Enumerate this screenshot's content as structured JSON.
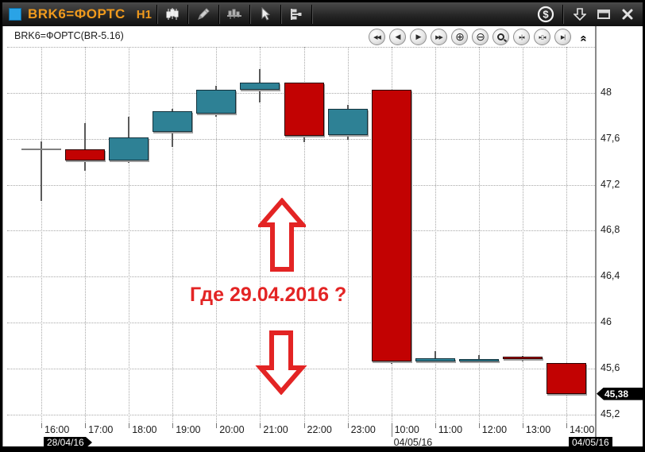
{
  "window": {
    "title": "BRK6=ФОРТС",
    "timeframe": "H1"
  },
  "colors": {
    "accent_orange": "#f09a1d",
    "accent_blue": "#2aa3e6",
    "candle_up": "#2e8195",
    "candle_down": "#c20202",
    "doji": "#7f7f7f",
    "annotation_red": "#e32424",
    "tag_bg": "#000000",
    "grid": "#a8a8a8"
  },
  "toolbar": {
    "left_icons": [
      "candlestick-chart-tool",
      "draw-pencil-tool",
      "volume-chart-tool",
      "cursor-tool",
      "levels-tool"
    ],
    "right_icons": [
      "dollar-currency",
      "download-arrow",
      "restore-window",
      "close-window"
    ]
  },
  "chart": {
    "instrument_label": "BRK6=ФОРТС(BR-5.16)",
    "nav_buttons": [
      {
        "name": "scroll-fast-left",
        "glyph": "◀◀"
      },
      {
        "name": "scroll-left",
        "glyph": "◀"
      },
      {
        "name": "scroll-right",
        "glyph": "▶"
      },
      {
        "name": "scroll-fast-right",
        "glyph": "▶▶"
      },
      {
        "name": "zoom-in",
        "glyph": "⊕"
      },
      {
        "name": "zoom-out",
        "glyph": "⊖"
      },
      {
        "name": "zoom-area",
        "glyph": "magnifier"
      },
      {
        "name": "compress-bars",
        "glyph": "▸|◂"
      },
      {
        "name": "expand-bars",
        "glyph": "▸▯◂"
      },
      {
        "name": "go-to-end",
        "glyph": "▶|"
      }
    ],
    "collapse_chevron": "collapse-toolbar"
  },
  "annotation": {
    "text": "Где 29.04.2016 ?"
  },
  "chart_data": {
    "type": "candlestick",
    "instrument": "BRK6=ФОРТС(BR-5.16)",
    "timeframe": "H1",
    "ylim": [
      45.11,
      48.58
    ],
    "grid": true,
    "y_grid": [
      48.4,
      48.0,
      47.6,
      47.2,
      46.8,
      46.4,
      46.0,
      45.6,
      45.2
    ],
    "y_ticks": [
      {
        "value": 48.0,
        "label": "48"
      },
      {
        "value": 47.6,
        "label": "47,6"
      },
      {
        "value": 47.2,
        "label": "47,2"
      },
      {
        "value": 46.8,
        "label": "46,8"
      },
      {
        "value": 46.4,
        "label": "46,4"
      },
      {
        "value": 46.0,
        "label": "46"
      },
      {
        "value": 45.6,
        "label": "45,6"
      },
      {
        "value": 45.2,
        "label": "45,2"
      }
    ],
    "last_price": 45.38,
    "last_price_label": "45,38",
    "candles": [
      {
        "time": "16:00",
        "open": 47.51,
        "high": 47.58,
        "low": 47.06,
        "close": 47.51,
        "doji": true
      },
      {
        "time": "17:00",
        "open": 47.51,
        "high": 47.74,
        "low": 47.32,
        "close": 47.41
      },
      {
        "time": "18:00",
        "open": 47.41,
        "high": 47.79,
        "low": 47.39,
        "close": 47.61
      },
      {
        "time": "19:00",
        "open": 47.66,
        "high": 47.86,
        "low": 47.53,
        "close": 47.84
      },
      {
        "time": "20:00",
        "open": 47.82,
        "high": 48.06,
        "low": 47.79,
        "close": 48.03
      },
      {
        "time": "21:00",
        "open": 48.03,
        "high": 48.21,
        "low": 47.92,
        "close": 48.09
      },
      {
        "time": "22:00",
        "open": 48.09,
        "high": 48.09,
        "low": 47.57,
        "close": 47.63
      },
      {
        "time": "23:00",
        "open": 47.63,
        "high": 47.9,
        "low": 47.59,
        "close": 47.86
      },
      {
        "time": "10:00",
        "open": 48.03,
        "high": 48.03,
        "low": 45.64,
        "close": 45.66,
        "session_start": true
      },
      {
        "time": "11:00",
        "open": 45.66,
        "high": 45.75,
        "low": 45.65,
        "close": 45.69
      },
      {
        "time": "12:00",
        "open": 45.66,
        "high": 45.72,
        "low": 45.65,
        "close": 45.68
      },
      {
        "time": "13:00",
        "open": 45.7,
        "high": 45.71,
        "low": 45.66,
        "close": 45.68
      },
      {
        "time": "14:00",
        "open": 45.65,
        "high": 45.65,
        "low": 45.36,
        "close": 45.38
      }
    ],
    "date_labels": [
      {
        "label": "28/04/16",
        "candle_index": 0,
        "style": "tag-arrow-right"
      },
      {
        "label": "04/05/16",
        "candle_index": 8,
        "style": "plain"
      },
      {
        "label": "04/05/16",
        "candle_index": 12,
        "style": "tag"
      }
    ]
  }
}
